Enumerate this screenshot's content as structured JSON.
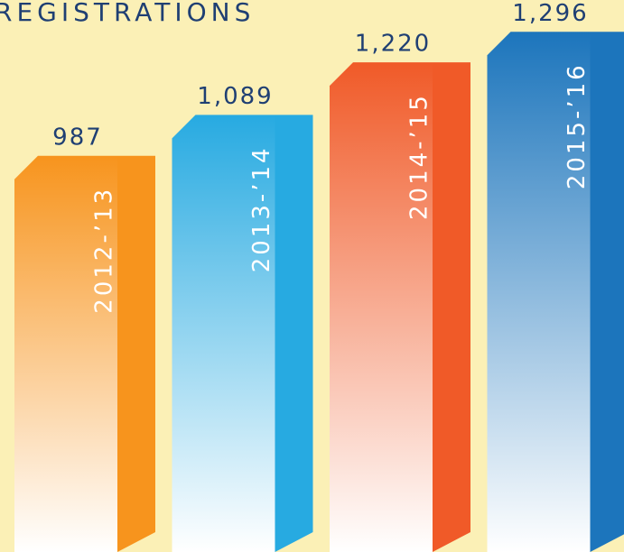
{
  "chart_data": {
    "type": "bar",
    "title": "REGISTRATIONS",
    "categories": [
      "2012-’13",
      "2013-’14",
      "2014-’15",
      "2015-’16"
    ],
    "values": [
      987,
      1089,
      1220,
      1296
    ],
    "value_labels": [
      "987",
      "1,089",
      "1,220",
      "1,296"
    ],
    "colors": [
      "#f7941d",
      "#27aae1",
      "#f05a28",
      "#1c75bc"
    ]
  }
}
